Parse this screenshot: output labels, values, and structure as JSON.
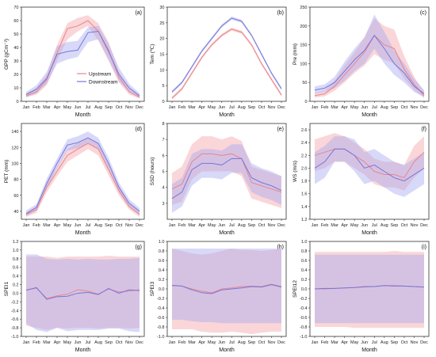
{
  "colors": {
    "upstream_line": "#e8858c",
    "upstream_band": "#f4a3a8",
    "downstream_line": "#7577d9",
    "downstream_band": "#a9aaf2"
  },
  "legend": {
    "upstream": "Upstream",
    "downstream": "Downstream"
  },
  "months": [
    "Jan",
    "Feb",
    "Mar",
    "Apr",
    "May",
    "Jun",
    "Jul",
    "Aug",
    "Sep",
    "Oct",
    "Nov",
    "Dec"
  ],
  "chart_data": [
    {
      "type": "line",
      "panel": "(a)",
      "ylabel": "GPP (gCm⁻²)",
      "xlabel": "Month",
      "ylim": [
        0,
        70
      ],
      "yticks": [
        0,
        10,
        20,
        30,
        40,
        50,
        60,
        70
      ],
      "legend": "top-left",
      "series": [
        {
          "name": "Upstream",
          "values": [
            4,
            7,
            16,
            36,
            54,
            56,
            60,
            52,
            38,
            18,
            7,
            3
          ],
          "lower": [
            3,
            5,
            12,
            30,
            46,
            52,
            56,
            45,
            30,
            14,
            5,
            2
          ],
          "upper": [
            6,
            10,
            20,
            42,
            58,
            62,
            64,
            58,
            44,
            22,
            10,
            5
          ]
        },
        {
          "name": "Downstream",
          "values": [
            5,
            9,
            17,
            35,
            37,
            38,
            51,
            52,
            37,
            20,
            10,
            4
          ],
          "lower": [
            3,
            6,
            13,
            28,
            31,
            33,
            44,
            46,
            31,
            15,
            7,
            3
          ],
          "upper": [
            7,
            12,
            22,
            41,
            44,
            45,
            55,
            56,
            43,
            25,
            13,
            6
          ]
        }
      ]
    },
    {
      "type": "line",
      "panel": "(b)",
      "ylabel": "Tem (℃)",
      "xlabel": "Month",
      "ylim": [
        0,
        30
      ],
      "yticks": [
        0,
        5,
        10,
        15,
        20,
        25,
        30
      ],
      "series": [
        {
          "name": "Upstream",
          "values": [
            1,
            4,
            9,
            14,
            18,
            21,
            23,
            22,
            18,
            12,
            7,
            2
          ],
          "lower": [
            0.5,
            3.5,
            8.5,
            13.5,
            17.5,
            20.5,
            22.5,
            21.5,
            17.5,
            11.5,
            6.5,
            1.5
          ],
          "upper": [
            1.5,
            4.5,
            9.5,
            14.5,
            18.5,
            21.5,
            23.5,
            22.5,
            18.5,
            12.5,
            7.5,
            2.5
          ]
        },
        {
          "name": "Downstream",
          "values": [
            3,
            6,
            11,
            16,
            20,
            24,
            26.5,
            25.5,
            21,
            15,
            9,
            4
          ],
          "lower": [
            2.5,
            5.5,
            10.5,
            15.5,
            19.5,
            23.5,
            26,
            25,
            20.5,
            14.5,
            8.5,
            3.5
          ],
          "upper": [
            3.5,
            6.5,
            11.5,
            16.5,
            20.5,
            24.5,
            27,
            26,
            21.5,
            15.5,
            9.5,
            4.5
          ]
        }
      ]
    },
    {
      "type": "line",
      "panel": "(c)",
      "ylabel": "Pre (mm)",
      "xlabel": "Month",
      "ylim": [
        0,
        250
      ],
      "yticks": [
        0,
        50,
        100,
        150,
        200,
        250
      ],
      "series": [
        {
          "name": "Upstream",
          "values": [
            15,
            20,
            40,
            70,
            100,
            130,
            175,
            150,
            140,
            85,
            45,
            15
          ],
          "lower": [
            10,
            13,
            28,
            50,
            75,
            95,
            125,
            110,
            100,
            60,
            30,
            8
          ],
          "upper": [
            22,
            28,
            55,
            95,
            130,
            170,
            220,
            200,
            190,
            120,
            65,
            25
          ]
        },
        {
          "name": "Downstream",
          "values": [
            30,
            35,
            50,
            80,
            110,
            135,
            175,
            140,
            100,
            75,
            40,
            20
          ],
          "lower": [
            20,
            25,
            35,
            55,
            80,
            100,
            140,
            100,
            70,
            50,
            25,
            12
          ],
          "upper": [
            40,
            45,
            65,
            105,
            140,
            170,
            230,
            185,
            135,
            100,
            60,
            30
          ]
        }
      ]
    },
    {
      "type": "line",
      "panel": "(d)",
      "ylabel": "PET (mm)",
      "xlabel": "Month",
      "ylim": [
        30,
        150
      ],
      "yticks": [
        40,
        60,
        80,
        100,
        120,
        140
      ],
      "series": [
        {
          "name": "Upstream",
          "values": [
            36,
            42,
            70,
            90,
            110,
            118,
            125,
            118,
            92,
            66,
            46,
            36
          ],
          "lower": [
            33,
            38,
            64,
            84,
            102,
            110,
            118,
            110,
            85,
            60,
            42,
            33
          ],
          "upper": [
            39,
            46,
            76,
            96,
            118,
            126,
            132,
            126,
            99,
            72,
            50,
            39
          ]
        },
        {
          "name": "Downstream",
          "values": [
            37,
            45,
            75,
            100,
            123,
            126,
            132,
            125,
            100,
            70,
            50,
            40
          ],
          "lower": [
            34,
            41,
            69,
            94,
            116,
            119,
            125,
            118,
            93,
            64,
            45,
            36
          ],
          "upper": [
            41,
            49,
            81,
            106,
            130,
            134,
            140,
            132,
            107,
            76,
            55,
            44
          ]
        }
      ]
    },
    {
      "type": "line",
      "panel": "(e)",
      "ylabel": "SSD (hours)",
      "xlabel": "Month",
      "ylim": [
        2,
        8
      ],
      "yticks": [
        3,
        4,
        5,
        6,
        7,
        8
      ],
      "series": [
        {
          "name": "Upstream",
          "values": [
            3.9,
            4.2,
            5.6,
            6.1,
            6.1,
            6.0,
            6.1,
            5.8,
            4.3,
            4.1,
            3.9,
            3.7
          ],
          "lower": [
            2.9,
            3.1,
            4.5,
            5.0,
            5.0,
            5.0,
            5.0,
            4.7,
            3.3,
            3.1,
            2.9,
            2.7
          ],
          "upper": [
            4.9,
            5.3,
            6.7,
            7.2,
            7.2,
            7.0,
            7.2,
            6.9,
            5.3,
            5.1,
            4.9,
            4.7
          ]
        },
        {
          "name": "Downstream",
          "values": [
            3.3,
            3.7,
            5.1,
            5.5,
            5.5,
            5.4,
            5.8,
            5.8,
            4.6,
            4.3,
            4.1,
            3.8
          ],
          "lower": [
            2.4,
            2.8,
            4.1,
            4.6,
            4.6,
            4.5,
            4.9,
            4.9,
            3.7,
            3.4,
            3.2,
            2.9
          ],
          "upper": [
            4.2,
            4.6,
            6.1,
            6.4,
            6.4,
            6.3,
            6.7,
            6.7,
            5.5,
            5.2,
            5.0,
            4.7
          ]
        }
      ]
    },
    {
      "type": "line",
      "panel": "(f)",
      "ylabel": "WS (m/s)",
      "xlabel": "Month",
      "ylim": [
        1.2,
        2.7
      ],
      "yticks": [
        1.2,
        1.4,
        1.6,
        1.8,
        2.0,
        2.2,
        2.4,
        2.6
      ],
      "series": [
        {
          "name": "Upstream",
          "values": [
            2.2,
            2.25,
            2.3,
            2.3,
            2.2,
            2.1,
            1.95,
            1.9,
            1.9,
            1.85,
            2.1,
            2.25
          ],
          "lower": [
            1.95,
            2.0,
            2.1,
            2.1,
            2.0,
            1.9,
            1.75,
            1.7,
            1.7,
            1.65,
            1.85,
            2.0
          ],
          "upper": [
            2.45,
            2.5,
            2.55,
            2.5,
            2.4,
            2.3,
            2.15,
            2.1,
            2.1,
            2.05,
            2.35,
            2.5
          ]
        },
        {
          "name": "Downstream",
          "values": [
            2.0,
            2.1,
            2.3,
            2.3,
            2.2,
            2.0,
            2.05,
            1.95,
            1.85,
            1.8,
            1.9,
            2.0
          ],
          "lower": [
            1.75,
            1.85,
            2.1,
            2.1,
            1.95,
            1.75,
            1.8,
            1.7,
            1.6,
            1.55,
            1.65,
            1.75
          ],
          "upper": [
            2.25,
            2.35,
            2.5,
            2.5,
            2.45,
            2.25,
            2.3,
            2.2,
            2.1,
            2.05,
            2.15,
            2.25
          ]
        }
      ]
    },
    {
      "type": "line",
      "panel": "(g)",
      "ylabel": "SPEI1",
      "xlabel": "Month",
      "ylim": [
        -1.0,
        1.2
      ],
      "yticks": [
        -1.0,
        -0.8,
        -0.6,
        -0.4,
        -0.2,
        0.0,
        0.2,
        0.4,
        0.6,
        0.8,
        1.0,
        1.2
      ],
      "series": [
        {
          "name": "Upstream",
          "values": [
            0.08,
            0.12,
            -0.12,
            -0.06,
            -0.02,
            0.08,
            0.05,
            -0.02,
            0.1,
            0.03,
            0.05,
            0.08
          ],
          "lower": [
            -0.75,
            -0.8,
            -0.85,
            -0.8,
            -0.82,
            -0.8,
            -0.8,
            -0.82,
            -0.8,
            -0.8,
            -0.82,
            -0.8
          ],
          "upper": [
            0.85,
            0.85,
            0.85,
            0.82,
            0.85,
            0.85,
            0.85,
            0.85,
            0.87,
            0.85,
            0.85,
            0.85
          ]
        },
        {
          "name": "Downstream",
          "values": [
            0.07,
            0.13,
            -0.14,
            -0.08,
            -0.07,
            0.0,
            0.02,
            -0.03,
            0.11,
            0.0,
            0.08,
            0.06
          ],
          "lower": [
            -0.7,
            -0.85,
            -0.9,
            -0.8,
            -0.88,
            -0.85,
            -0.85,
            -0.85,
            -0.82,
            -0.82,
            -0.88,
            -0.9
          ],
          "upper": [
            0.9,
            0.9,
            0.8,
            0.78,
            0.8,
            0.78,
            0.8,
            0.78,
            0.78,
            0.8,
            0.8,
            0.82
          ]
        }
      ]
    },
    {
      "type": "line",
      "panel": "(h)",
      "ylabel": "SPEI3",
      "xlabel": "Month",
      "ylim": [
        -1.0,
        1.0
      ],
      "yticks": [
        -1.0,
        -0.8,
        -0.6,
        -0.4,
        -0.2,
        0.0,
        0.2,
        0.4,
        0.6,
        0.8,
        1.0
      ],
      "series": [
        {
          "name": "Upstream",
          "values": [
            0.08,
            0.06,
            0.0,
            -0.05,
            -0.08,
            0.0,
            0.02,
            0.05,
            0.06,
            0.05,
            0.1,
            0.05
          ],
          "lower": [
            -0.85,
            -0.85,
            -0.85,
            -0.9,
            -0.92,
            -0.92,
            -0.9,
            -0.92,
            -0.95,
            -0.92,
            -0.9,
            -0.9
          ],
          "upper": [
            0.85,
            0.8,
            0.75,
            0.72,
            0.75,
            0.8,
            0.85,
            0.82,
            0.82,
            0.8,
            0.82,
            0.85
          ]
        },
        {
          "name": "Downstream",
          "values": [
            0.07,
            0.06,
            -0.02,
            -0.08,
            -0.1,
            -0.02,
            0.0,
            0.02,
            0.05,
            0.04,
            0.09,
            0.04
          ],
          "lower": [
            -0.65,
            -0.65,
            -0.68,
            -0.7,
            -0.7,
            -0.72,
            -0.72,
            -0.72,
            -0.72,
            -0.72,
            -0.72,
            -0.72
          ],
          "upper": [
            0.85,
            0.85,
            0.85,
            0.85,
            0.85,
            0.85,
            0.85,
            0.85,
            0.85,
            0.85,
            0.85,
            0.85
          ]
        }
      ]
    },
    {
      "type": "line",
      "panel": "(i)",
      "ylabel": "SPEI12",
      "xlabel": "Month",
      "ylim": [
        -1.0,
        1.0
      ],
      "yticks": [
        -1.0,
        -0.8,
        -0.6,
        -0.4,
        -0.2,
        0.0,
        0.2,
        0.4,
        0.6,
        0.8,
        1.0
      ],
      "series": [
        {
          "name": "Upstream",
          "values": [
            0.0,
            0.0,
            0.01,
            0.02,
            0.03,
            0.04,
            0.05,
            0.07,
            0.07,
            0.06,
            0.05,
            0.04
          ],
          "lower": [
            -0.8,
            -0.8,
            -0.8,
            -0.8,
            -0.82,
            -0.82,
            -0.82,
            -0.82,
            -0.82,
            -0.82,
            -0.82,
            -0.82
          ],
          "upper": [
            0.78,
            0.78,
            0.78,
            0.78,
            0.78,
            0.78,
            0.78,
            0.78,
            0.8,
            0.78,
            0.78,
            0.78
          ]
        },
        {
          "name": "Downstream",
          "values": [
            0.0,
            0.01,
            0.01,
            0.02,
            0.03,
            0.05,
            0.05,
            0.07,
            0.06,
            0.06,
            0.05,
            0.04
          ],
          "lower": [
            -0.72,
            -0.72,
            -0.72,
            -0.72,
            -0.72,
            -0.72,
            -0.72,
            -0.72,
            -0.72,
            -0.72,
            -0.72,
            -0.72
          ],
          "upper": [
            0.72,
            0.72,
            0.72,
            0.72,
            0.72,
            0.72,
            0.72,
            0.72,
            0.72,
            0.72,
            0.72,
            0.72
          ]
        }
      ]
    }
  ]
}
